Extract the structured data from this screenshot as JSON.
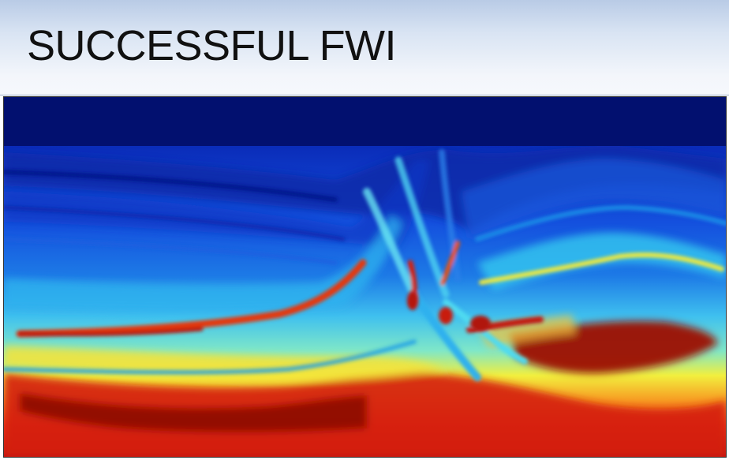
{
  "slide": {
    "title": "SUCCESSFUL FWI"
  },
  "velocity_model": {
    "colormap": "jet",
    "colors": {
      "water": "#02106f",
      "low": "#0b32c6",
      "mid_low": "#1c7de8",
      "mid": "#43d3f2",
      "mid_high": "#f3ee3c",
      "high": "#f0451a",
      "max": "#950a06"
    }
  }
}
